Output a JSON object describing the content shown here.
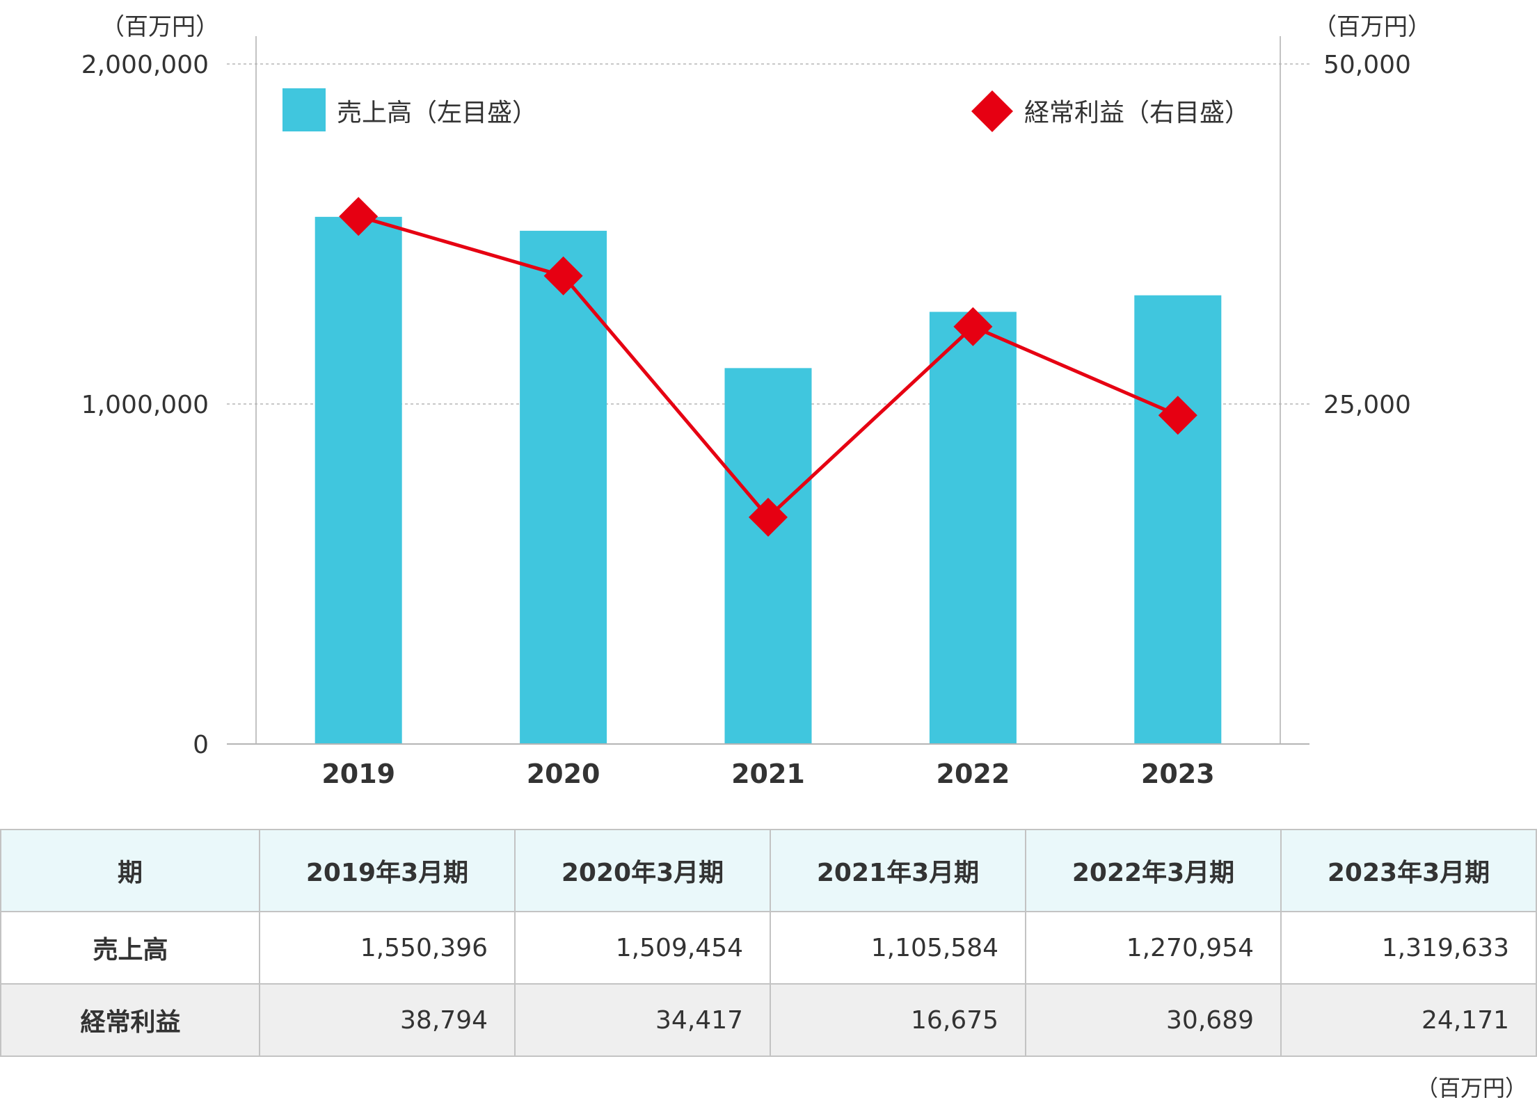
{
  "chart_data": {
    "type": "bar+line",
    "categories": [
      "2019",
      "2020",
      "2021",
      "2022",
      "2023"
    ],
    "left_axis": {
      "unit": "（百万円）",
      "range": [
        0,
        2000000
      ],
      "ticks": [
        "0",
        "1,000,000",
        "2,000,000"
      ]
    },
    "right_axis": {
      "unit": "（百万円）",
      "range": [
        0,
        50000
      ],
      "ticks": [
        "25,000",
        "50,000"
      ]
    },
    "series": [
      {
        "name": "売上高（左目盛）",
        "type": "bar",
        "axis": "left",
        "color": "#40c6de",
        "values": [
          1550396,
          1509454,
          1105584,
          1270954,
          1319633
        ]
      },
      {
        "name": "経常利益（右目盛）",
        "type": "line",
        "axis": "right",
        "color": "#e60012",
        "values": [
          38794,
          34417,
          16675,
          30689,
          24171
        ]
      }
    ],
    "grid": "horizontal-dashed",
    "legend_placement": "top"
  },
  "table": {
    "headers": [
      "期",
      "2019年3月期",
      "2020年3月期",
      "2021年3月期",
      "2022年3月期",
      "2023年3月期"
    ],
    "rows": [
      {
        "label": "売上高",
        "values": [
          "1,550,396",
          "1,509,454",
          "1,105,584",
          "1,270,954",
          "1,319,633"
        ]
      },
      {
        "label": "経常利益",
        "values": [
          "38,794",
          "34,417",
          "16,675",
          "30,689",
          "24,171"
        ]
      }
    ],
    "unit": "（百万円）"
  }
}
